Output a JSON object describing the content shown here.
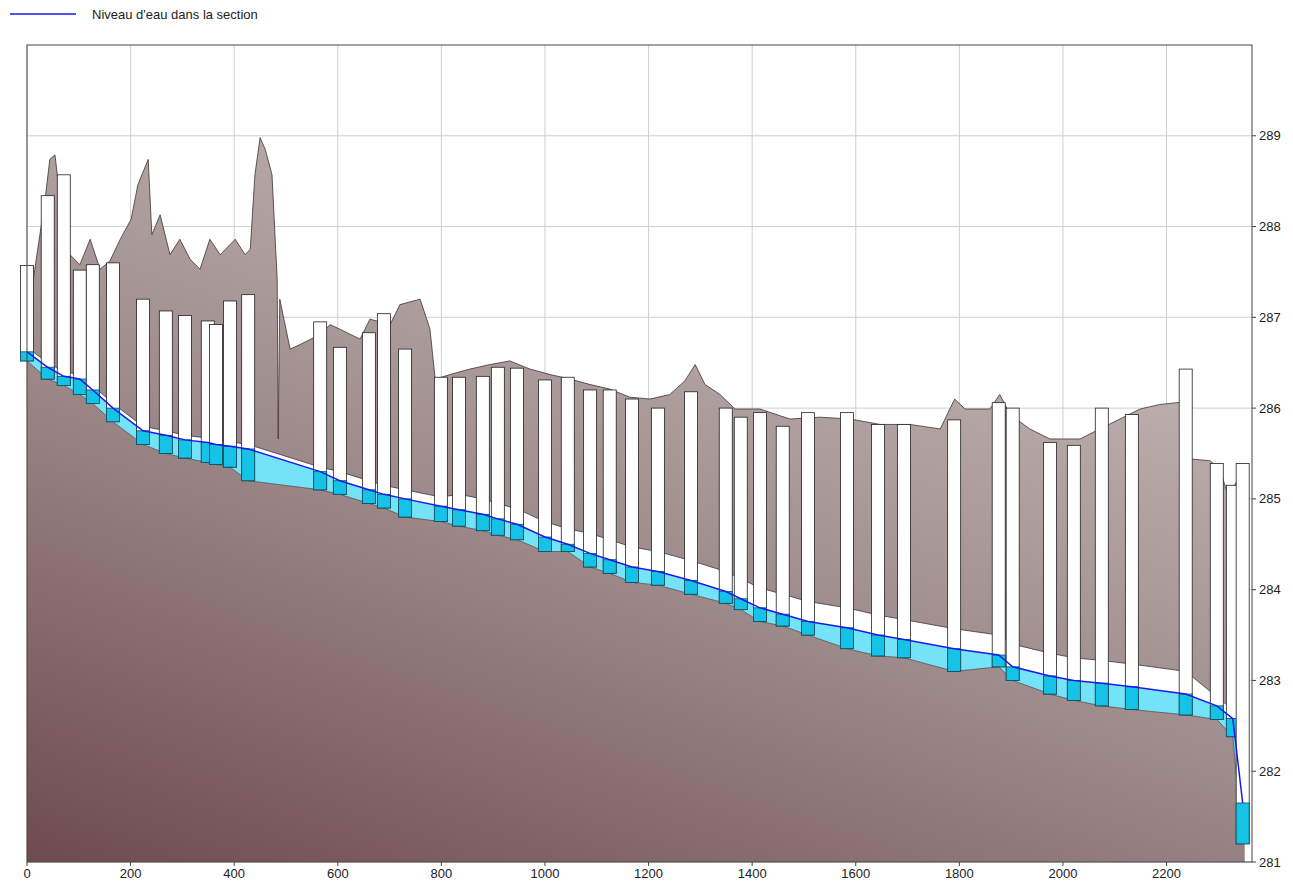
{
  "chart_data": {
    "type": "line",
    "legend": "top-left",
    "grid": true,
    "xlim": [
      0,
      2365
    ],
    "ylim": [
      281,
      290
    ],
    "xticks": [
      0,
      200,
      400,
      600,
      800,
      1000,
      1200,
      1400,
      1600,
      1800,
      2000,
      2200
    ],
    "yticks": [
      281,
      282,
      283,
      284,
      285,
      286,
      287,
      288,
      289
    ],
    "x": [
      0,
      40,
      71,
      102,
      127,
      166,
      224,
      268,
      305,
      349,
      365,
      392,
      427,
      566,
      604,
      660,
      689,
      730,
      799,
      834,
      880,
      909,
      946,
      1000,
      1044,
      1087,
      1125,
      1168,
      1218,
      1282,
      1349,
      1378,
      1415,
      1459,
      1508,
      1583,
      1643,
      1693,
      1790,
      1876,
      1903,
      1975,
      2021,
      2075,
      2133,
      2237,
      2297,
      2328,
      2347
    ],
    "series": [
      {
        "name": "Niveau d'eau dans la section",
        "color": "#1a1aee",
        "values": [
          286.62,
          286.45,
          286.35,
          286.32,
          286.2,
          286.0,
          285.75,
          285.7,
          285.65,
          285.62,
          285.6,
          285.58,
          285.55,
          285.3,
          285.2,
          285.1,
          285.05,
          285.0,
          284.92,
          284.88,
          284.83,
          284.78,
          284.72,
          284.58,
          284.5,
          284.4,
          284.33,
          284.25,
          284.2,
          284.1,
          283.98,
          283.9,
          283.8,
          283.73,
          283.65,
          283.58,
          283.5,
          283.45,
          283.35,
          283.28,
          283.15,
          283.05,
          283.0,
          282.97,
          282.93,
          282.85,
          282.72,
          282.58,
          281.65
        ]
      }
    ],
    "bed": [
      286.52,
      286.32,
      286.25,
      286.15,
      286.05,
      285.85,
      285.6,
      285.5,
      285.45,
      285.4,
      285.38,
      285.35,
      285.2,
      285.1,
      285.05,
      284.95,
      284.9,
      284.8,
      284.75,
      284.7,
      284.65,
      284.6,
      284.55,
      284.42,
      284.42,
      284.25,
      284.18,
      284.08,
      284.05,
      283.95,
      283.85,
      283.78,
      283.65,
      283.6,
      283.5,
      283.35,
      283.27,
      283.25,
      283.1,
      283.15,
      283.0,
      282.85,
      282.78,
      282.72,
      282.68,
      282.62,
      282.57,
      282.38,
      281.2
    ],
    "section_top": [
      287.57,
      288.34,
      288.57,
      287.52,
      287.58,
      287.6,
      287.2,
      287.07,
      287.02,
      286.96,
      286.92,
      287.18,
      287.25,
      286.95,
      286.67,
      286.83,
      287.04,
      286.65,
      286.34,
      286.34,
      286.35,
      286.45,
      286.44,
      286.31,
      286.34,
      286.2,
      286.2,
      286.1,
      286.0,
      286.18,
      286.0,
      285.9,
      285.95,
      285.8,
      285.95,
      285.95,
      285.82,
      285.82,
      285.87,
      286.06,
      286.0,
      285.62,
      285.59,
      286.0,
      285.93,
      286.43,
      285.39,
      285.15,
      285.39
    ],
    "bank": [
      286.67,
      286.5,
      286.4,
      286.37,
      286.25,
      286.05,
      285.8,
      285.75,
      285.7,
      285.67,
      285.65,
      285.63,
      285.6,
      285.35,
      285.3,
      285.2,
      285.15,
      285.1,
      285.02,
      285.05,
      285.0,
      284.95,
      284.89,
      284.75,
      284.67,
      284.62,
      284.55,
      284.47,
      284.42,
      284.32,
      284.2,
      284.12,
      284.02,
      283.95,
      283.87,
      283.8,
      283.72,
      283.67,
      283.57,
      283.5,
      283.4,
      283.3,
      283.25,
      283.22,
      283.18,
      283.1,
      282.82,
      282.68,
      281.75
    ],
    "terrain": {
      "x": [
        0,
        15,
        35,
        44,
        54,
        64,
        73,
        83,
        102,
        122,
        141,
        160,
        180,
        201,
        214,
        234,
        241,
        257,
        276,
        295,
        315,
        334,
        353,
        373,
        402,
        421,
        431,
        440,
        450,
        460,
        473,
        483,
        485,
        488,
        508,
        527,
        566,
        585,
        604,
        643,
        662,
        701,
        720,
        759,
        778,
        788,
        817,
        855,
        894,
        932,
        971,
        1010,
        1048,
        1087,
        1125,
        1164,
        1203,
        1241,
        1270,
        1290,
        1309,
        1338,
        1367,
        1415,
        1473,
        1531,
        1589,
        1647,
        1705,
        1763,
        1791,
        1811,
        1859,
        1878,
        1898,
        1936,
        1975,
        2033,
        2071,
        2110,
        2149,
        2187,
        2237,
        2245,
        2284,
        2303,
        2318,
        2332,
        2351
      ],
      "values": [
        286.87,
        287.53,
        288.3,
        288.74,
        288.79,
        288.3,
        287.75,
        287.69,
        287.58,
        287.86,
        287.53,
        287.62,
        287.86,
        288.08,
        288.46,
        288.74,
        287.91,
        288.13,
        287.69,
        287.86,
        287.64,
        287.53,
        287.86,
        287.69,
        287.86,
        287.69,
        287.75,
        288.57,
        288.98,
        288.85,
        288.57,
        287.42,
        285.66,
        287.2,
        286.65,
        286.7,
        286.81,
        286.92,
        286.87,
        286.76,
        286.98,
        286.92,
        287.14,
        287.2,
        286.87,
        286.32,
        286.37,
        286.43,
        286.48,
        286.52,
        286.43,
        286.37,
        286.32,
        286.26,
        286.21,
        286.12,
        286.1,
        286.15,
        286.3,
        286.48,
        286.26,
        286.15,
        285.99,
        285.99,
        285.88,
        285.9,
        285.88,
        285.82,
        285.82,
        285.77,
        286.1,
        285.99,
        285.99,
        286.15,
        285.93,
        285.77,
        285.66,
        285.66,
        285.77,
        285.88,
        285.99,
        286.04,
        286.07,
        285.44,
        285.42,
        285.33,
        285.05,
        285.16,
        285.33
      ]
    }
  }
}
